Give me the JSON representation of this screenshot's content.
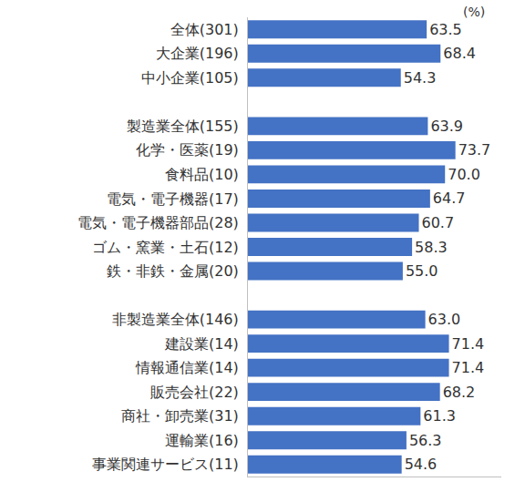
{
  "chart_data": {
    "type": "bar",
    "orientation": "horizontal",
    "categories": [
      "全体(301)",
      "大企業(196)",
      "中小企業(105)",
      null,
      "製造業全体(155)",
      "化学・医薬(19)",
      "食料品(10)",
      "電気・電子機器(17)",
      "電気・電子機器部品(28)",
      "ゴム・窯業・土石(12)",
      "鉄・非鉄・金属(20)",
      null,
      "非製造業全体(146)",
      "建設業(14)",
      "情報通信業(14)",
      "販売会社(22)",
      "商社・卸売業(31)",
      "運輸業(16)",
      "事業関連サービス(11)"
    ],
    "values": [
      63.5,
      68.4,
      54.3,
      null,
      63.9,
      73.7,
      70.0,
      64.7,
      60.7,
      58.3,
      55.0,
      null,
      63.0,
      71.4,
      71.4,
      68.2,
      61.3,
      56.3,
      54.6
    ],
    "value_labels": [
      "63.5",
      "68.4",
      "54.3",
      null,
      "63.9",
      "73.7",
      "70.0",
      "64.7",
      "60.7",
      "58.3",
      "55.0",
      null,
      "63.0",
      "71.4",
      "71.4",
      "68.2",
      "61.3",
      "56.3",
      "54.6"
    ],
    "annotations": [
      "(%)"
    ],
    "color": "#4472c4",
    "xlim": [
      0,
      90
    ],
    "data_labels": true,
    "tick_labels": "y",
    "grid": false
  }
}
